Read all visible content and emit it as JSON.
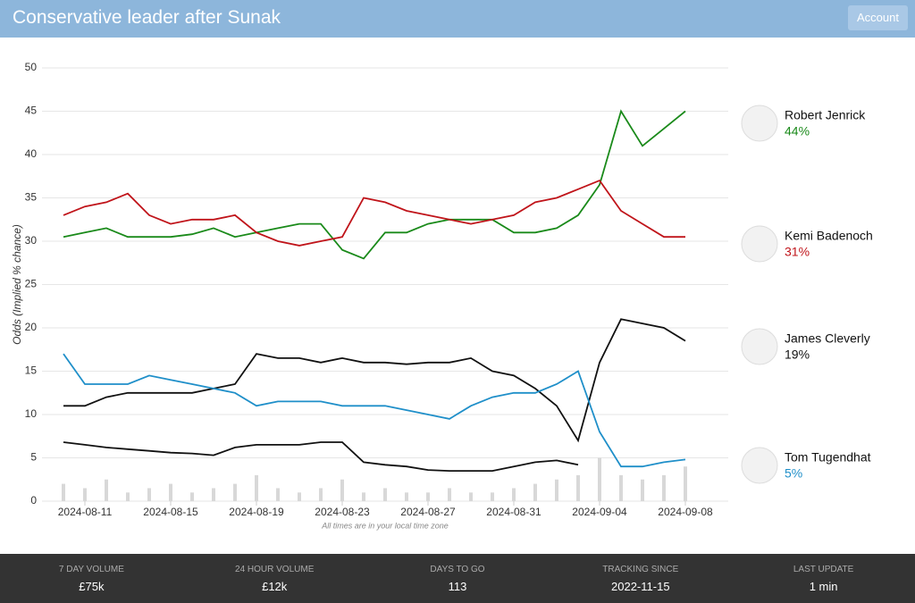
{
  "header": {
    "title": "Conservative leader after Sunak",
    "button": "Account"
  },
  "chart_data": {
    "type": "line",
    "y_label": "Odds (Implied % chance)",
    "note": "All times are in your local time zone",
    "x": [
      "2024-08-10",
      "2024-08-11",
      "2024-08-12",
      "2024-08-13",
      "2024-08-14",
      "2024-08-15",
      "2024-08-16",
      "2024-08-17",
      "2024-08-18",
      "2024-08-19",
      "2024-08-20",
      "2024-08-21",
      "2024-08-22",
      "2024-08-23",
      "2024-08-24",
      "2024-08-25",
      "2024-08-26",
      "2024-08-27",
      "2024-08-28",
      "2024-08-29",
      "2024-08-30",
      "2024-08-31",
      "2024-09-01",
      "2024-09-02",
      "2024-09-03",
      "2024-09-04",
      "2024-09-05",
      "2024-09-06",
      "2024-09-07",
      "2024-09-08"
    ],
    "xlim": [
      "2024-08-09",
      "2024-09-10"
    ],
    "xticks": [
      "2024-08-11",
      "2024-08-15",
      "2024-08-19",
      "2024-08-23",
      "2024-08-27",
      "2024-08-31",
      "2024-09-04",
      "2024-09-08"
    ],
    "ylim": [
      0,
      50
    ],
    "yticks": [
      0,
      5,
      10,
      15,
      20,
      25,
      30,
      35,
      40,
      45,
      50
    ],
    "grid": true,
    "series": [
      {
        "name": "Robert Jenrick",
        "color": "#1a8a1a",
        "current": {
          "value": 44,
          "label": "44%"
        },
        "values": [
          30.5,
          31,
          31.5,
          30.5,
          30.5,
          30.5,
          30.8,
          31.5,
          30.5,
          31,
          31.5,
          32,
          32,
          29,
          28,
          31,
          31,
          32,
          32.5,
          32.5,
          32.5,
          31,
          31,
          31.5,
          33,
          36.5,
          45,
          41,
          43,
          45
        ]
      },
      {
        "name": "Kemi Badenoch",
        "color": "#c0141a",
        "current": {
          "value": 31,
          "label": "31%"
        },
        "values": [
          33,
          34,
          34.5,
          35.5,
          33,
          32,
          32.5,
          32.5,
          33,
          31,
          30,
          29.5,
          30,
          30.5,
          35,
          34.5,
          33.5,
          33,
          32.5,
          32,
          32.5,
          33,
          34.5,
          35,
          36,
          37,
          33.5,
          32,
          30.5,
          30.5
        ]
      },
      {
        "name": "James Cleverly",
        "color": "#111111",
        "current": {
          "value": 19,
          "label": "19%"
        },
        "values": [
          11,
          11,
          12,
          12.5,
          12.5,
          12.5,
          12.5,
          13,
          13.5,
          17,
          16.5,
          16.5,
          16,
          16.5,
          16,
          16,
          15.8,
          16,
          16,
          16.5,
          15,
          14.5,
          13,
          11,
          7,
          16,
          21,
          20.5,
          20,
          18.5
        ]
      },
      {
        "name": "Tom Tugendhat",
        "color": "#1f8fc9",
        "current": {
          "value": 5,
          "label": "5%"
        },
        "values": [
          17,
          13.5,
          13.5,
          13.5,
          14.5,
          14,
          13.5,
          13,
          12.5,
          11,
          11.5,
          11.5,
          11.5,
          11,
          11,
          11,
          10.5,
          10,
          9.5,
          11,
          12,
          12.5,
          12.5,
          13.5,
          15,
          8,
          4,
          4,
          4.5,
          4.8
        ]
      },
      {
        "color": "#111111",
        "values": [
          6.8,
          6.5,
          6.2,
          6,
          5.8,
          5.6,
          5.5,
          5.3,
          6.2,
          6.5,
          6.5,
          6.5,
          6.8,
          6.8,
          4.5,
          4.2,
          4,
          3.6,
          3.5,
          3.5,
          3.5,
          4,
          4.5,
          4.7,
          4.2,
          null,
          null,
          null,
          null,
          null
        ]
      }
    ],
    "volume": {
      "color": "#d8d8d8",
      "values": [
        2,
        1.5,
        2.5,
        1,
        1.5,
        2,
        1,
        1.5,
        2,
        3,
        1.5,
        1,
        1.5,
        2.5,
        1,
        1.5,
        1,
        1,
        1.5,
        1,
        1,
        1.5,
        2,
        2.5,
        3,
        5,
        3,
        2.5,
        3,
        4
      ]
    }
  },
  "footer": {
    "stats": [
      {
        "label": "7 DAY VOLUME",
        "value": "£75k"
      },
      {
        "label": "24 HOUR VOLUME",
        "value": "£12k"
      },
      {
        "label": "DAYS TO GO",
        "value": "113"
      },
      {
        "label": "TRACKING SINCE",
        "value": "2022-11-15"
      },
      {
        "label": "LAST UPDATE",
        "value": "1 min"
      }
    ]
  }
}
